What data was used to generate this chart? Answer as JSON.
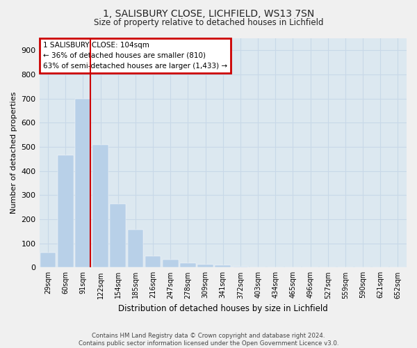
{
  "title_line1": "1, SALISBURY CLOSE, LICHFIELD, WS13 7SN",
  "title_line2": "Size of property relative to detached houses in Lichfield",
  "xlabel": "Distribution of detached houses by size in Lichfield",
  "ylabel": "Number of detached properties",
  "categories": [
    "29sqm",
    "60sqm",
    "91sqm",
    "122sqm",
    "154sqm",
    "185sqm",
    "216sqm",
    "247sqm",
    "278sqm",
    "309sqm",
    "341sqm",
    "372sqm",
    "403sqm",
    "434sqm",
    "465sqm",
    "496sqm",
    "527sqm",
    "559sqm",
    "590sqm",
    "621sqm",
    "652sqm"
  ],
  "values": [
    62,
    465,
    700,
    510,
    263,
    158,
    46,
    34,
    18,
    12,
    10,
    3,
    0,
    0,
    0,
    0,
    0,
    0,
    0,
    0,
    0
  ],
  "bar_color": "#b8d0e8",
  "bar_edge_color": "#b8d0e8",
  "line_x_index": 2.42,
  "line_color": "#cc0000",
  "annotation_text_line1": "1 SALISBURY CLOSE: 104sqm",
  "annotation_text_line2": "← 36% of detached houses are smaller (810)",
  "annotation_text_line3": "63% of semi-detached houses are larger (1,433) →",
  "annotation_box_color": "#cc0000",
  "ylim": [
    0,
    950
  ],
  "yticks": [
    0,
    100,
    200,
    300,
    400,
    500,
    600,
    700,
    800,
    900
  ],
  "grid_color": "#c8d8e8",
  "plot_bg_color": "#dce8f0",
  "fig_bg_color": "#f0f0f0",
  "footer_line1": "Contains HM Land Registry data © Crown copyright and database right 2024.",
  "footer_line2": "Contains public sector information licensed under the Open Government Licence v3.0."
}
